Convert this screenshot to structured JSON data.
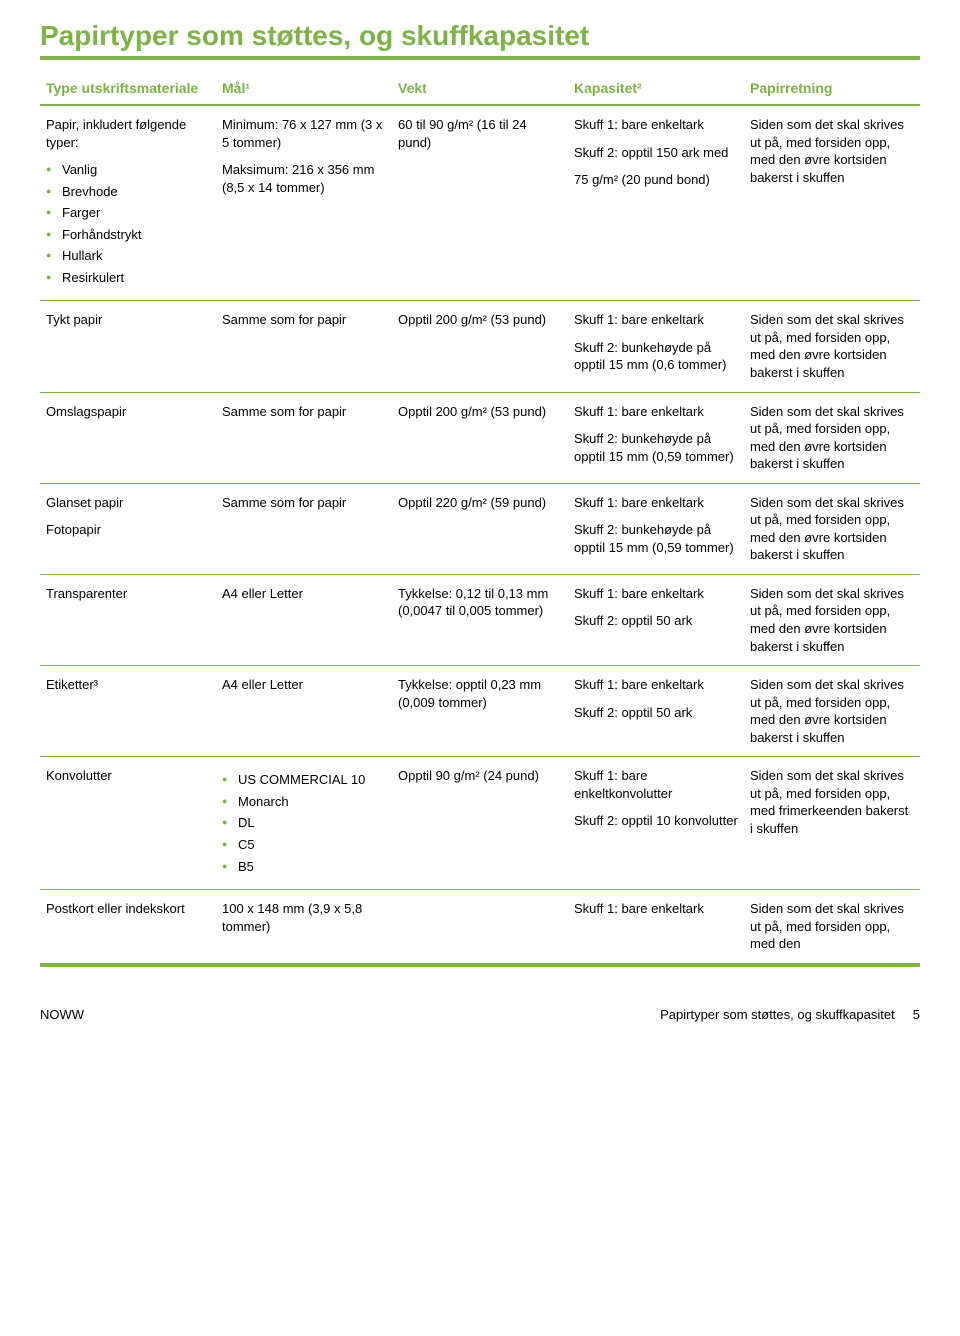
{
  "title": "Papirtyper som støttes, og skuffkapasitet",
  "headers": {
    "c1": "Type utskriftsmateriale",
    "c2": "Mål¹",
    "c3": "Vekt",
    "c4": "Kapasitet²",
    "c5": "Papirretning"
  },
  "row1": {
    "type_intro": "Papir, inkludert følgende typer:",
    "types": [
      "Vanlig",
      "Brevhode",
      "Farger",
      "Forhåndstrykt",
      "Hullark",
      "Resirkulert"
    ],
    "dim1": "Minimum: 76 x 127 mm (3 x 5 tommer)",
    "dim2": "Maksimum: 216 x 356 mm (8,5 x 14 tommer)",
    "wt": "60 til 90 g/m² (16 til 24 pund)",
    "cap1": "Skuff 1: bare enkeltark",
    "cap2": "Skuff 2: opptil 150 ark med",
    "cap3": "75 g/m² (20 pund bond)",
    "dir": "Siden som det skal skrives ut på, med forsiden opp, med den øvre kortsiden bakerst i skuffen"
  },
  "row2": {
    "type": "Tykt papir",
    "dim": "Samme som for papir",
    "wt": "Opptil 200 g/m² (53 pund)",
    "cap1": "Skuff 1: bare enkeltark",
    "cap2": "Skuff 2: bunkehøyde på opptil 15 mm (0,6 tommer)",
    "dir": "Siden som det skal skrives ut på, med forsiden opp, med den øvre kortsiden bakerst i skuffen"
  },
  "row3": {
    "type": "Omslagspapir",
    "dim": "Samme som for papir",
    "wt": "Opptil 200 g/m² (53 pund)",
    "cap1": "Skuff 1: bare enkeltark",
    "cap2": "Skuff 2: bunkehøyde på opptil 15 mm (0,59 tommer)",
    "dir": "Siden som det skal skrives ut på, med forsiden opp, med den øvre kortsiden bakerst i skuffen"
  },
  "row4": {
    "type1": "Glanset papir",
    "type2": "Fotopapir",
    "dim": "Samme som for papir",
    "wt": "Opptil 220 g/m² (59 pund)",
    "cap1": "Skuff 1: bare enkeltark",
    "cap2": "Skuff 2: bunkehøyde på opptil 15 mm (0,59 tommer)",
    "dir": "Siden som det skal skrives ut på, med forsiden opp, med den øvre kortsiden bakerst i skuffen"
  },
  "row5": {
    "type": "Transparenter",
    "dim": "A4 eller Letter",
    "wt": "Tykkelse: 0,12 til 0,13 mm (0,0047 til 0,005 tommer)",
    "cap1": "Skuff 1: bare enkeltark",
    "cap2": "Skuff 2: opptil 50 ark",
    "dir": "Siden som det skal skrives ut på, med forsiden opp, med den øvre kortsiden bakerst i skuffen"
  },
  "row6": {
    "type": "Etiketter³",
    "dim": "A4 eller Letter",
    "wt": "Tykkelse: opptil 0,23 mm (0,009 tommer)",
    "cap1": "Skuff 1: bare enkeltark",
    "cap2": "Skuff 2: opptil 50 ark",
    "dir": "Siden som det skal skrives ut på, med forsiden opp, med den øvre kortsiden bakerst i skuffen"
  },
  "row7": {
    "type": "Konvolutter",
    "dims": [
      "US COMMERCIAL 10",
      "Monarch",
      "DL",
      "C5",
      "B5"
    ],
    "wt": "Opptil 90 g/m² (24 pund)",
    "cap1": "Skuff 1: bare enkeltkonvolutter",
    "cap2": "Skuff 2: opptil 10 konvolutter",
    "dir": "Siden som det skal skrives ut på, med forsiden opp, med frimerkeenden bakerst i skuffen"
  },
  "row8": {
    "type": "Postkort eller indekskort",
    "dim": "100 x 148 mm (3,9 x 5,8 tommer)",
    "cap": "Skuff 1: bare enkeltark",
    "dir": "Siden som det skal skrives ut på, med forsiden opp, med den"
  },
  "footer": {
    "left": "NOWW",
    "right": "Papirtyper som støttes, og skuffkapasitet",
    "page": "5"
  }
}
